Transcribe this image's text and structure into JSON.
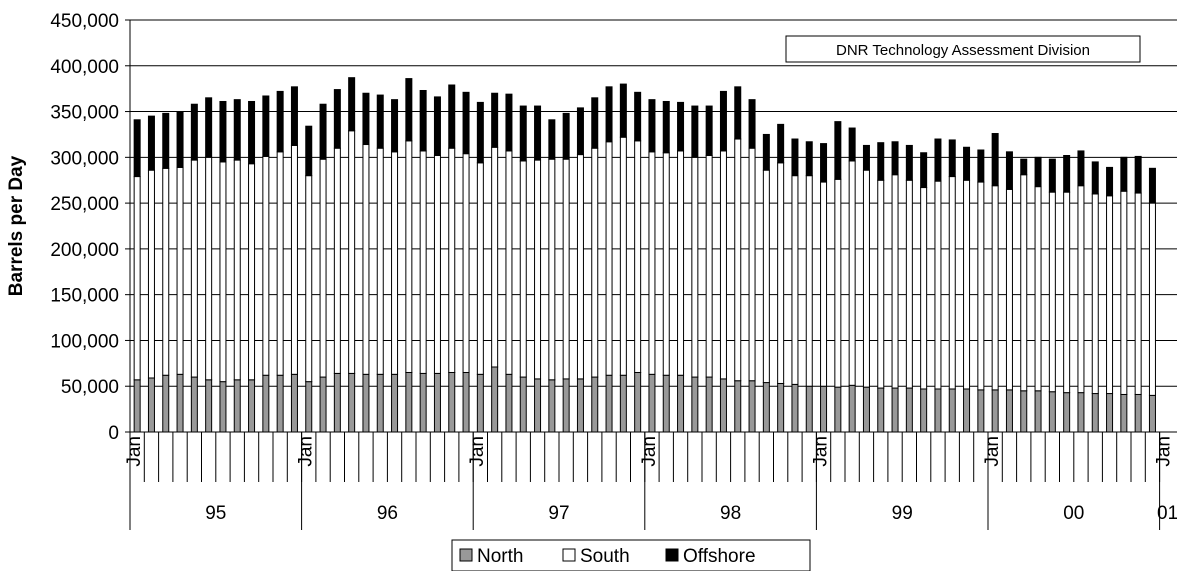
{
  "chart_data": {
    "type": "bar",
    "stacked": true,
    "ylabel": "Barrels per Day",
    "ylim": [
      0,
      450000
    ],
    "yticks": [
      "0",
      "50,000",
      "100,000",
      "150,000",
      "200,000",
      "250,000",
      "300,000",
      "350,000",
      "400,000",
      "450,000"
    ],
    "grid": "horizontal",
    "legend_placement": "bottom-center",
    "annotation": "DNR Technology Assessment Division",
    "month_tick_label": "Jan",
    "years": [
      "95",
      "96",
      "97",
      "98",
      "99",
      "00",
      "01"
    ],
    "series": [
      {
        "name": "North",
        "color": "#999999",
        "values": [
          57000,
          59000,
          62000,
          63000,
          60000,
          57000,
          55000,
          57000,
          57000,
          62000,
          62000,
          63000,
          55000,
          60000,
          64000,
          64000,
          63000,
          63000,
          63000,
          65000,
          64000,
          64000,
          65000,
          65000,
          63000,
          71000,
          63000,
          60000,
          58000,
          57000,
          58000,
          58000,
          60000,
          62000,
          62000,
          65000,
          63000,
          62000,
          62000,
          60000,
          60000,
          58000,
          56000,
          56000,
          54000,
          53000,
          52000,
          50000,
          50000,
          49000,
          51000,
          49000,
          48000,
          48000,
          48000,
          47000,
          47000,
          47000,
          47000,
          46000,
          46000,
          46000,
          45000,
          45000,
          44000,
          43000,
          43000,
          42000,
          42000,
          41000,
          41000,
          40000
        ]
      },
      {
        "name": "South",
        "color": "#ffffff",
        "values": [
          222000,
          227000,
          226000,
          226000,
          237000,
          243000,
          240000,
          240000,
          236000,
          239000,
          244000,
          250000,
          225000,
          238000,
          246000,
          265000,
          251000,
          247000,
          243000,
          253000,
          243000,
          238000,
          245000,
          239000,
          231000,
          240000,
          244000,
          236000,
          239000,
          241000,
          240000,
          245000,
          250000,
          255000,
          260000,
          253000,
          243000,
          243000,
          245000,
          240000,
          242000,
          249000,
          264000,
          254000,
          232000,
          241000,
          228000,
          230000,
          223000,
          227000,
          245000,
          237000,
          227000,
          233000,
          227000,
          220000,
          227000,
          232000,
          228000,
          227000,
          223000,
          219000,
          236000,
          223000,
          218000,
          219000,
          226000,
          218000,
          216000,
          222000,
          220000,
          210000
        ]
      },
      {
        "name": "Offshore",
        "color": "#000000",
        "values": [
          62000,
          59000,
          60000,
          61000,
          61000,
          65000,
          66000,
          66000,
          68000,
          66000,
          66000,
          64000,
          54000,
          60000,
          64000,
          58000,
          56000,
          58000,
          57000,
          68000,
          66000,
          64000,
          69000,
          67000,
          66000,
          59000,
          62000,
          60000,
          59000,
          43000,
          50000,
          51000,
          55000,
          60000,
          58000,
          53000,
          57000,
          56000,
          53000,
          56000,
          54000,
          65000,
          57000,
          53000,
          39000,
          42000,
          40000,
          37000,
          42000,
          63000,
          36000,
          27000,
          41000,
          36000,
          38000,
          38000,
          46000,
          40000,
          36000,
          35000,
          57000,
          41000,
          17000,
          32000,
          36000,
          40000,
          38000,
          35000,
          31000,
          37000,
          40000,
          38000
        ]
      }
    ],
    "legend": [
      "North",
      "South",
      "Offshore"
    ]
  }
}
